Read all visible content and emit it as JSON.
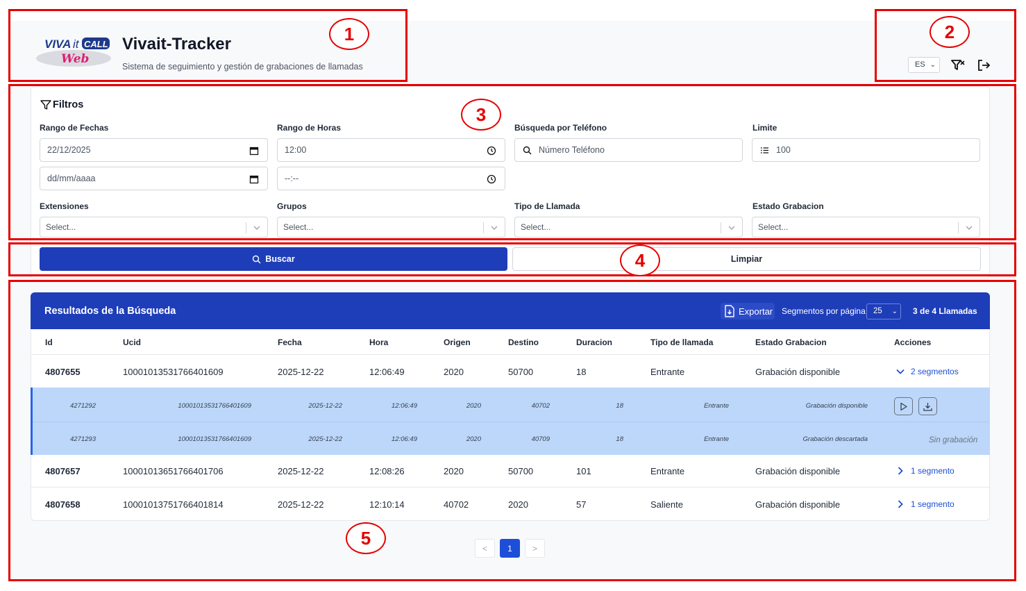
{
  "header": {
    "logo_text_top": "VIVAit CALL",
    "logo_text_bottom": "Web",
    "title": "Vivait-Tracker",
    "subtitle": "Sistema de seguimiento y gestión de grabaciones de llamadas",
    "language": "ES"
  },
  "filters": {
    "title": "Filtros",
    "date_range_label": "Rango de Fechas",
    "date_from": "22/12/2025",
    "date_to_placeholder": "dd/mm/aaaa",
    "time_range_label": "Rango de Horas",
    "time_from": "12:00",
    "time_to_placeholder": "--:--",
    "phone_label": "Búsqueda por Teléfono",
    "phone_placeholder": "Número Teléfono",
    "limit_label": "Limite",
    "limit_value": "100",
    "extensions_label": "Extensiones",
    "groups_label": "Grupos",
    "call_type_label": "Tipo de Llamada",
    "rec_status_label": "Estado Grabacion",
    "select_placeholder": "Select..."
  },
  "actions": {
    "search_label": "Buscar",
    "clear_label": "Limpiar"
  },
  "results": {
    "title": "Resultados de la Búsqueda",
    "export_label": "Exportar",
    "segments_per_page_label": "Segmentos por página",
    "segments_per_page_value": "25",
    "count_label": "3 de 4 Llamadas",
    "columns": [
      "Id",
      "Ucid",
      "Fecha",
      "Hora",
      "Origen",
      "Destino",
      "Duracion",
      "Tipo de llamada",
      "Estado Grabacion",
      "Acciones"
    ],
    "rows": [
      {
        "id": "4807655",
        "ucid": "10001013531766401609",
        "fecha": "2025-12-22",
        "hora": "12:06:49",
        "origen": "2020",
        "destino": "50700",
        "duracion": "18",
        "tipo": "Entrante",
        "estado": "Grabación disponible",
        "accion": "2 segmentos"
      },
      {
        "id": "4807657",
        "ucid": "10001013651766401706",
        "fecha": "2025-12-22",
        "hora": "12:08:26",
        "origen": "2020",
        "destino": "50700",
        "duracion": "101",
        "tipo": "Entrante",
        "estado": "Grabación disponible",
        "accion": "1 segmento"
      },
      {
        "id": "4807658",
        "ucid": "10001013751766401814",
        "fecha": "2025-12-22",
        "hora": "12:10:14",
        "origen": "40702",
        "destino": "2020",
        "duracion": "57",
        "tipo": "Saliente",
        "estado": "Grabación disponible",
        "accion": "1 segmento"
      }
    ],
    "segments": [
      {
        "id": "4271292",
        "ucid": "10001013531766401609",
        "fecha": "2025-12-22",
        "hora": "12:06:49",
        "origen": "2020",
        "destino": "40702",
        "duracion": "18",
        "tipo": "Entrante",
        "estado": "Grabación disponible"
      },
      {
        "id": "4271293",
        "ucid": "10001013531766401609",
        "fecha": "2025-12-22",
        "hora": "12:06:49",
        "origen": "2020",
        "destino": "40709",
        "duracion": "18",
        "tipo": "Entrante",
        "estado": "Grabación descartada",
        "note": "Sin grabación"
      }
    ]
  },
  "pagination": {
    "prev": "<",
    "current": "1",
    "next": ">"
  },
  "annotations": [
    "1",
    "2",
    "3",
    "4",
    "5"
  ],
  "colors": {
    "primary": "#1e3db8",
    "highlight_row": "#bcd7fa",
    "annotation": "#e60000",
    "link": "#1d4ed8"
  }
}
